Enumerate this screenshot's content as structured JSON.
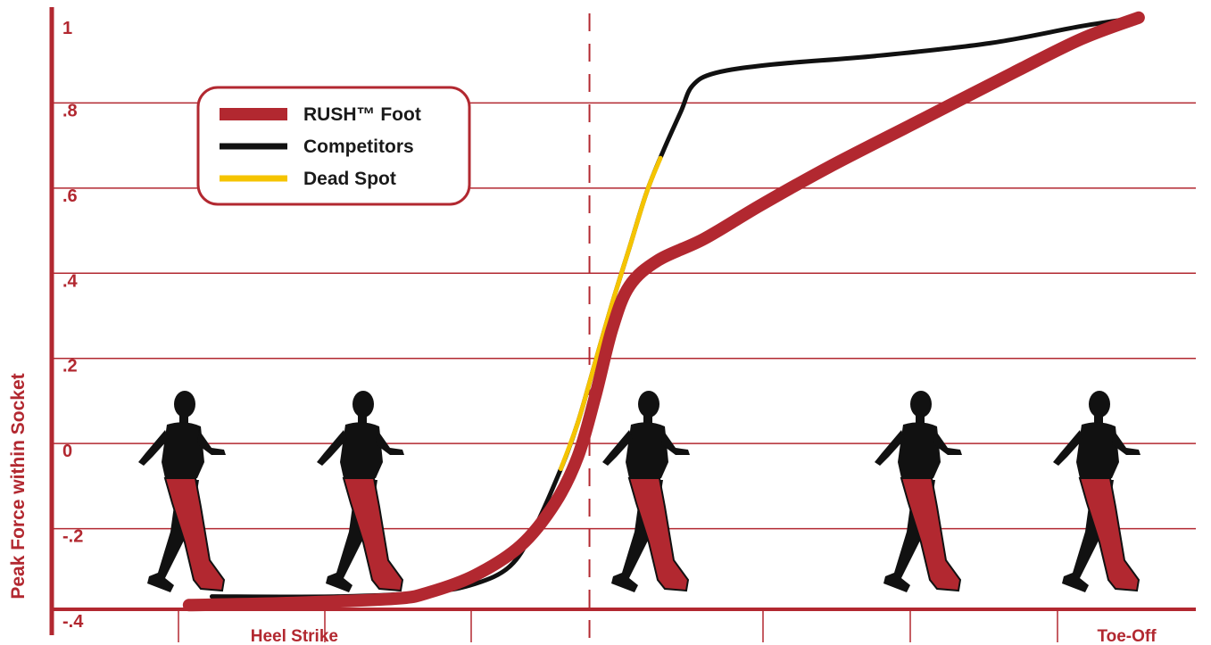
{
  "chart_data": {
    "type": "line",
    "title": "",
    "xlabel": "",
    "ylabel": "Peak Force within Socket",
    "ylim": [
      -0.4,
      1.0
    ],
    "y_ticks": [
      "1",
      ".8",
      ".6",
      ".4",
      ".2",
      "0",
      "-.2",
      "-.4"
    ],
    "x_phase_labels": [
      {
        "label": "Heel Strike",
        "x": 0.18
      },
      {
        "label": "Toe-Off",
        "x": 0.92
      }
    ],
    "legend_position": "top-left",
    "grid": true,
    "x_range": [
      0,
      1
    ],
    "stance_divider_x": 0.47,
    "series": [
      {
        "name": "RUSH™ Foot",
        "color": "#b22830",
        "points": [
          [
            0.12,
            -0.39
          ],
          [
            0.21,
            -0.385
          ],
          [
            0.3,
            -0.375
          ],
          [
            0.33,
            -0.36
          ],
          [
            0.37,
            -0.32
          ],
          [
            0.41,
            -0.25
          ],
          [
            0.44,
            -0.15
          ],
          [
            0.46,
            -0.04
          ],
          [
            0.475,
            0.1
          ],
          [
            0.49,
            0.26
          ],
          [
            0.505,
            0.36
          ],
          [
            0.53,
            0.42
          ],
          [
            0.57,
            0.47
          ],
          [
            0.62,
            0.55
          ],
          [
            0.68,
            0.64
          ],
          [
            0.76,
            0.75
          ],
          [
            0.84,
            0.86
          ],
          [
            0.9,
            0.94
          ],
          [
            0.95,
            0.99
          ]
        ]
      },
      {
        "name": "Competitors",
        "color": "#111111",
        "points": [
          [
            0.14,
            -0.37
          ],
          [
            0.25,
            -0.37
          ],
          [
            0.33,
            -0.36
          ],
          [
            0.37,
            -0.34
          ],
          [
            0.4,
            -0.3
          ],
          [
            0.42,
            -0.22
          ],
          [
            0.445,
            -0.07
          ],
          [
            0.46,
            0.04
          ],
          [
            0.475,
            0.18
          ],
          [
            0.49,
            0.32
          ],
          [
            0.505,
            0.45
          ],
          [
            0.52,
            0.58
          ],
          [
            0.535,
            0.68
          ],
          [
            0.55,
            0.77
          ],
          [
            0.56,
            0.83
          ],
          [
            0.58,
            0.86
          ],
          [
            0.63,
            0.88
          ],
          [
            0.72,
            0.9
          ],
          [
            0.82,
            0.93
          ],
          [
            0.9,
            0.97
          ],
          [
            0.95,
            0.99
          ]
        ]
      },
      {
        "name": "Dead Spot",
        "color": "#f5c400",
        "points": [
          [
            0.445,
            -0.07
          ],
          [
            0.46,
            0.04
          ],
          [
            0.475,
            0.18
          ],
          [
            0.49,
            0.32
          ],
          [
            0.505,
            0.45
          ],
          [
            0.52,
            0.58
          ],
          [
            0.532,
            0.66
          ]
        ]
      }
    ]
  },
  "legend": {
    "items": [
      {
        "label": "RUSH™ Foot",
        "color": "#b22830"
      },
      {
        "label": "Competitors",
        "color": "#111111"
      },
      {
        "label": "Dead Spot",
        "color": "#f5c400"
      }
    ]
  },
  "colors": {
    "axis": "#b22830",
    "grid": "#b22830",
    "text": "#b22830"
  }
}
